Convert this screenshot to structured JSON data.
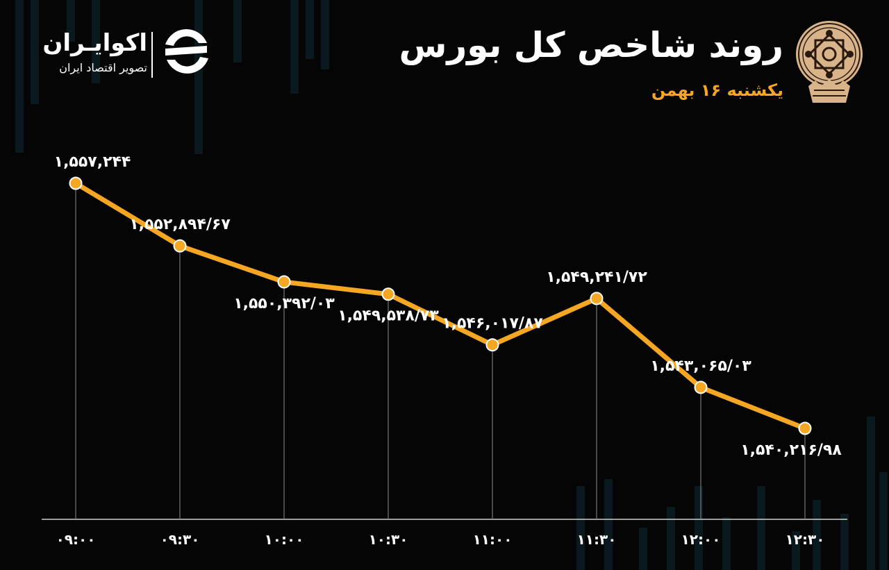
{
  "header": {
    "title": "روند شاخص کل بورس",
    "subtitle": "یکشنبه ۱۶ بهمن"
  },
  "brand": {
    "name": "اکوایـران",
    "tagline": "تصویر اقتصاد ایران"
  },
  "colors": {
    "line": "#f5a623",
    "label": "#ffffff",
    "background": "#050505",
    "subtitle": "#f5a623"
  },
  "icons": [
    "ecoiran-logo-icon",
    "tehran-stock-exchange-emblem-icon"
  ],
  "chart_data": {
    "type": "line",
    "title": "روند شاخص کل بورس",
    "x": [
      "۰۹:۰۰",
      "۰۹:۳۰",
      "۱۰:۰۰",
      "۱۰:۳۰",
      "۱۱:۰۰",
      "۱۱:۳۰",
      "۱۲:۰۰",
      "۱۲:۳۰"
    ],
    "series": [
      {
        "values": [
          1557244,
          1552894.67,
          1550392.03,
          1549538.73,
          1546017.87,
          1549241.72,
          1543065.03,
          1540216.98
        ],
        "labels": [
          "۱,۵۵۷,۲۴۴",
          "۱,۵۵۲,۸۹۴/۶۷",
          "۱,۵۵۰,۳۹۲/۰۳",
          "۱,۵۴۹,۵۳۸/۷۳",
          "۱,۵۴۶,۰۱۷/۸۷",
          "۱,۵۴۹,۲۴۱/۷۲",
          "۱,۵۴۳,۰۶۵/۰۳",
          "۱,۵۴۰,۲۱۶/۹۸"
        ]
      }
    ],
    "xlabel": "",
    "ylabel": "",
    "grid": false
  }
}
